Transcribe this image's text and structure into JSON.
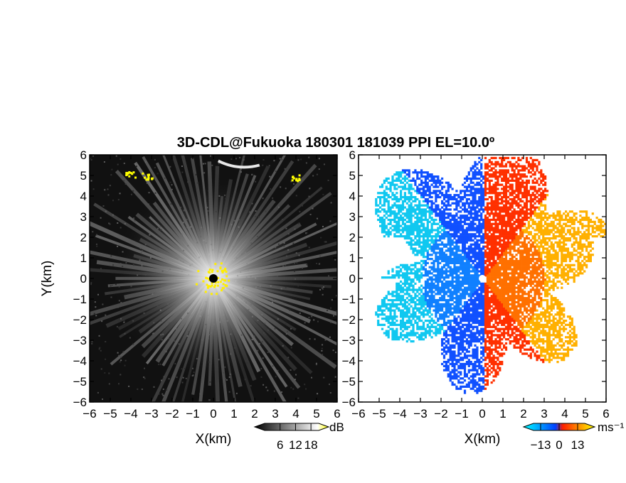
{
  "chart_data": [
    {
      "type": "heatmap",
      "title": "3D-CDL@Fukuoka 180301 181039 PPI EL=10.0º",
      "xlabel": "X(km)",
      "ylabel": "Y(km)",
      "xlim": [
        -6,
        6
      ],
      "ylim": [
        -6,
        6
      ],
      "xticks": [
        "−6",
        "−5",
        "−4",
        "−3",
        "−2",
        "−1",
        "0",
        "1",
        "2",
        "3",
        "4",
        "5",
        "6"
      ],
      "yticks": [
        "6",
        "5",
        "4",
        "3",
        "2",
        "1",
        "0",
        "−1",
        "−2",
        "−3",
        "−4",
        "−5",
        "−6"
      ],
      "quantity": "SNR",
      "colorbar": {
        "unit": "dB",
        "ticks": [
          "6",
          "12",
          "18"
        ],
        "range": [
          0,
          21
        ],
        "colors": [
          "#000000",
          "#ffffff",
          "#ffff00"
        ]
      },
      "features": [
        {
          "x": -4.0,
          "y": 5.1,
          "type": "saturated"
        },
        {
          "x": -3.2,
          "y": 5.0,
          "type": "saturated"
        },
        {
          "x": 1.2,
          "y": 5.5,
          "type": "bright"
        },
        {
          "x": 4.0,
          "y": 4.9,
          "type": "saturated"
        },
        {
          "x": 0.0,
          "y": 0.0,
          "type": "near-range"
        }
      ]
    },
    {
      "type": "heatmap",
      "xlabel": "X(km)",
      "xlim": [
        -6,
        6
      ],
      "ylim": [
        -6,
        6
      ],
      "xticks": [
        "−6",
        "−5",
        "−4",
        "−3",
        "−2",
        "−1",
        "0",
        "1",
        "2",
        "3",
        "4",
        "5",
        "6"
      ],
      "yticks": [
        "6",
        "5",
        "4",
        "3",
        "2",
        "1",
        "0",
        "−1",
        "−2",
        "−3",
        "−4",
        "−5",
        "−6"
      ],
      "quantity": "Doppler velocity",
      "colorbar": {
        "unit": "ms⁻¹",
        "ticks": [
          "−13",
          "0",
          "13"
        ],
        "range": [
          -18,
          18
        ],
        "colors": [
          "#00ffff",
          "#0040ff",
          "#ff2000",
          "#ffff00"
        ]
      }
    }
  ]
}
